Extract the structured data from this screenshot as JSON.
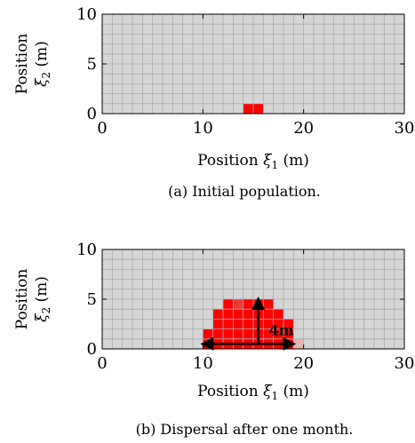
{
  "chart_data": [
    {
      "type": "heatmap",
      "panel_caption": "(a) Initial population.",
      "xlabel_text": "Position ",
      "xlabel_symbol": "ξ",
      "xlabel_sub": "1",
      "xlabel_unit": " (m)",
      "ylabel_line1": "Position",
      "ylabel_symbol": "ξ",
      "ylabel_sub": "2",
      "ylabel_unit": " (m)",
      "xlim": [
        0,
        30
      ],
      "ylim": [
        0,
        10
      ],
      "xticks": [
        0,
        10,
        20,
        30
      ],
      "yticks": [
        0,
        5,
        10
      ],
      "grid": true,
      "cell_size_m": 1,
      "cells": [
        {
          "x": 14,
          "y": 0,
          "level": "full"
        },
        {
          "x": 15,
          "y": 0,
          "level": "full"
        }
      ]
    },
    {
      "type": "heatmap",
      "panel_caption": "(b) Dispersal after one month.",
      "xlabel_text": "Position ",
      "xlabel_symbol": "ξ",
      "xlabel_sub": "1",
      "xlabel_unit": " (m)",
      "ylabel_line1": "Position",
      "ylabel_symbol": "ξ",
      "ylabel_sub": "2",
      "ylabel_unit": " (m)",
      "xlim": [
        0,
        30
      ],
      "ylim": [
        0,
        10
      ],
      "xticks": [
        0,
        10,
        20,
        30
      ],
      "yticks": [
        0,
        5,
        10
      ],
      "grid": true,
      "cell_size_m": 1,
      "cells": [
        {
          "x": 10,
          "y": 0,
          "level": "full"
        },
        {
          "x": 11,
          "y": 0,
          "level": "full"
        },
        {
          "x": 12,
          "y": 0,
          "level": "full"
        },
        {
          "x": 13,
          "y": 0,
          "level": "full"
        },
        {
          "x": 14,
          "y": 0,
          "level": "full"
        },
        {
          "x": 15,
          "y": 0,
          "level": "full"
        },
        {
          "x": 16,
          "y": 0,
          "level": "full"
        },
        {
          "x": 17,
          "y": 0,
          "level": "full"
        },
        {
          "x": 18,
          "y": 0,
          "level": "full"
        },
        {
          "x": 19,
          "y": 0,
          "level": "faint"
        },
        {
          "x": 10,
          "y": 1,
          "level": "full"
        },
        {
          "x": 11,
          "y": 1,
          "level": "full"
        },
        {
          "x": 12,
          "y": 1,
          "level": "full"
        },
        {
          "x": 13,
          "y": 1,
          "level": "full"
        },
        {
          "x": 14,
          "y": 1,
          "level": "full"
        },
        {
          "x": 15,
          "y": 1,
          "level": "full"
        },
        {
          "x": 16,
          "y": 1,
          "level": "full"
        },
        {
          "x": 17,
          "y": 1,
          "level": "full"
        },
        {
          "x": 18,
          "y": 1,
          "level": "full"
        },
        {
          "x": 11,
          "y": 2,
          "level": "full"
        },
        {
          "x": 12,
          "y": 2,
          "level": "full"
        },
        {
          "x": 13,
          "y": 2,
          "level": "full"
        },
        {
          "x": 14,
          "y": 2,
          "level": "full"
        },
        {
          "x": 15,
          "y": 2,
          "level": "full"
        },
        {
          "x": 16,
          "y": 2,
          "level": "full"
        },
        {
          "x": 17,
          "y": 2,
          "level": "full"
        },
        {
          "x": 18,
          "y": 2,
          "level": "full"
        },
        {
          "x": 11,
          "y": 3,
          "level": "full"
        },
        {
          "x": 12,
          "y": 3,
          "level": "full"
        },
        {
          "x": 13,
          "y": 3,
          "level": "full"
        },
        {
          "x": 14,
          "y": 3,
          "level": "full"
        },
        {
          "x": 15,
          "y": 3,
          "level": "full"
        },
        {
          "x": 16,
          "y": 3,
          "level": "full"
        },
        {
          "x": 17,
          "y": 3,
          "level": "full"
        },
        {
          "x": 12,
          "y": 4,
          "level": "full"
        },
        {
          "x": 13,
          "y": 4,
          "level": "medium"
        },
        {
          "x": 14,
          "y": 4,
          "level": "full"
        },
        {
          "x": 15,
          "y": 4,
          "level": "full"
        },
        {
          "x": 16,
          "y": 4,
          "level": "full"
        }
      ],
      "annotation": {
        "label": "4m",
        "center": [
          15.5,
          0.5
        ],
        "arrow_tips": [
          [
            10,
            0.5
          ],
          [
            19,
            0.5
          ],
          [
            15.5,
            5
          ]
        ]
      }
    }
  ],
  "colors": {
    "empty_cell": "#d6d6d6",
    "grid_line": "#aaaaaa",
    "full": "#ff0000",
    "medium": "#ee3838",
    "faint": "#e8b4b4",
    "arrow": "#000000"
  }
}
